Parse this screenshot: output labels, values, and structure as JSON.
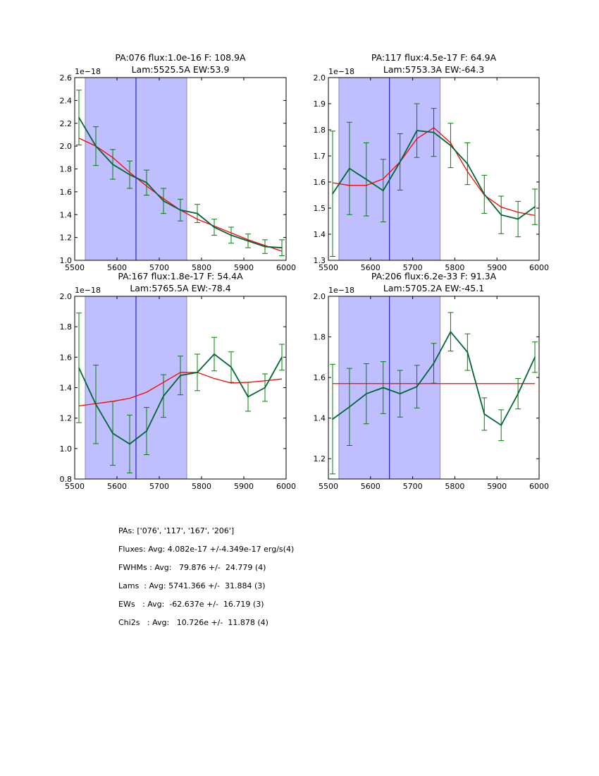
{
  "chart_data": [
    {
      "type": "line",
      "title": [
        "PA:076 flux:1.0e-16 F: 108.9A",
        "Lam:5525.5A EW:53.9"
      ],
      "exponent_label": "1e−18",
      "xlim": [
        5500,
        6000
      ],
      "ylim": [
        1.0,
        2.6
      ],
      "xticks": [
        "5500",
        "5600",
        "5700",
        "5800",
        "5900",
        "6000"
      ],
      "yticks": [
        "1.0",
        "1.2",
        "1.4",
        "1.6",
        "1.8",
        "2.0",
        "2.2",
        "2.4",
        "2.6"
      ],
      "shade": [
        5525,
        5765
      ],
      "vline": 5645,
      "x": [
        5510,
        5550,
        5590,
        5630,
        5670,
        5710,
        5750,
        5790,
        5830,
        5870,
        5910,
        5950,
        5990
      ],
      "series": [
        {
          "name": "data",
          "color": "#006633",
          "values": [
            2.25,
            2.0,
            1.84,
            1.75,
            1.68,
            1.52,
            1.44,
            1.41,
            1.29,
            1.22,
            1.17,
            1.12,
            1.11
          ],
          "err": [
            0.24,
            0.17,
            0.13,
            0.12,
            0.11,
            0.11,
            0.095,
            0.08,
            0.07,
            0.07,
            0.06,
            0.06,
            0.07
          ]
        },
        {
          "name": "model",
          "color": "#ff0000",
          "values": [
            2.07,
            2.0,
            1.9,
            1.77,
            1.65,
            1.54,
            1.44,
            1.36,
            1.3,
            1.24,
            1.18,
            1.13,
            1.08
          ]
        }
      ]
    },
    {
      "type": "line",
      "title": [
        "PA:117 flux:4.5e-17 F: 64.9A",
        "Lam:5753.3A EW:-64.3"
      ],
      "exponent_label": "1e−18",
      "xlim": [
        5500,
        6000
      ],
      "ylim": [
        1.3,
        2.0
      ],
      "xticks": [
        "5500",
        "5600",
        "5700",
        "5800",
        "5900",
        "6000"
      ],
      "yticks": [
        "1.3",
        "1.4",
        "1.5",
        "1.6",
        "1.7",
        "1.8",
        "1.9",
        "2.0"
      ],
      "shade": [
        5525,
        5765
      ],
      "vline": 5645,
      "x": [
        5510,
        5550,
        5590,
        5630,
        5670,
        5710,
        5750,
        5790,
        5830,
        5870,
        5910,
        5950,
        5990
      ],
      "series": [
        {
          "name": "data",
          "color": "#006633",
          "values": [
            1.555,
            1.652,
            1.61,
            1.567,
            1.677,
            1.797,
            1.79,
            1.74,
            1.67,
            1.553,
            1.474,
            1.458,
            1.505
          ],
          "err": [
            0.24,
            0.177,
            0.14,
            0.12,
            0.108,
            0.103,
            0.092,
            0.085,
            0.08,
            0.073,
            0.072,
            0.068,
            0.068
          ]
        },
        {
          "name": "model",
          "color": "#ff0000",
          "values": [
            1.597,
            1.587,
            1.587,
            1.612,
            1.677,
            1.766,
            1.808,
            1.75,
            1.64,
            1.55,
            1.504,
            1.484,
            1.472
          ]
        }
      ]
    },
    {
      "type": "line",
      "title": [
        "PA:167 flux:1.8e-17 F: 54.4A",
        "Lam:5765.5A EW:-78.4"
      ],
      "exponent_label": "1e−18",
      "xlim": [
        5500,
        6000
      ],
      "ylim": [
        0.8,
        2.0
      ],
      "xticks": [
        "5500",
        "5600",
        "5700",
        "5800",
        "5900",
        "6000"
      ],
      "yticks": [
        "0.8",
        "1.0",
        "1.2",
        "1.4",
        "1.6",
        "1.8",
        "2.0"
      ],
      "shade": [
        5525,
        5765
      ],
      "vline": 5645,
      "x": [
        5510,
        5550,
        5590,
        5630,
        5670,
        5710,
        5750,
        5790,
        5830,
        5870,
        5910,
        5950,
        5990
      ],
      "series": [
        {
          "name": "data",
          "color": "#006633",
          "values": [
            1.53,
            1.29,
            1.1,
            1.03,
            1.115,
            1.345,
            1.48,
            1.5,
            1.62,
            1.535,
            1.34,
            1.4,
            1.6
          ],
          "err": [
            0.36,
            0.258,
            0.21,
            0.19,
            0.155,
            0.14,
            0.127,
            0.12,
            0.11,
            0.1,
            0.095,
            0.09,
            0.085
          ]
        },
        {
          "name": "model",
          "color": "#ff0000",
          "values": [
            1.28,
            1.295,
            1.31,
            1.33,
            1.37,
            1.435,
            1.5,
            1.5,
            1.46,
            1.43,
            1.435,
            1.445,
            1.457
          ]
        }
      ]
    },
    {
      "type": "line",
      "title": [
        "PA:206 flux:6.2e-33 F: 91.3A",
        "Lam:5705.2A EW:-45.1"
      ],
      "exponent_label": "1e−18",
      "xlim": [
        5500,
        6000
      ],
      "ylim": [
        1.1,
        2.0
      ],
      "xticks": [
        "5500",
        "5600",
        "5700",
        "5800",
        "5900",
        "6000"
      ],
      "yticks": [
        "1.2",
        "1.4",
        "1.6",
        "1.8",
        "2.0"
      ],
      "shade": [
        5525,
        5765
      ],
      "vline": 5645,
      "x": [
        5510,
        5550,
        5590,
        5630,
        5670,
        5710,
        5750,
        5790,
        5830,
        5870,
        5910,
        5950,
        5990
      ],
      "series": [
        {
          "name": "data",
          "color": "#006633",
          "values": [
            1.395,
            1.455,
            1.52,
            1.55,
            1.52,
            1.555,
            1.67,
            1.825,
            1.725,
            1.42,
            1.365,
            1.52,
            1.7
          ],
          "err": [
            0.27,
            0.19,
            0.148,
            0.128,
            0.115,
            0.105,
            0.098,
            0.095,
            0.09,
            0.08,
            0.076,
            0.075,
            0.075
          ]
        },
        {
          "name": "model",
          "color": "#ff0000",
          "values": [
            1.57,
            1.57,
            1.57,
            1.57,
            1.57,
            1.57,
            1.57,
            1.57,
            1.57,
            1.57,
            1.57,
            1.57,
            1.57
          ]
        }
      ]
    }
  ],
  "stats": [
    "PAs: ['076', '117', '167', '206']",
    "Fluxes: Avg: 4.082e-17 +/-4.349e-17 erg/s(4)",
    "FWHMs : Avg:   79.876 +/-  24.779 (4)",
    "Lams  : Avg: 5741.366 +/-  31.884 (3)",
    "EWs   : Avg:  -62.637e +/-  16.719 (3)",
    "Chi2s   : Avg:   10.726e +/-  11.878 (4)"
  ],
  "colors": {
    "shade": "#bfbfff",
    "shade_edge": "#8888bb",
    "vline": "#0000cc",
    "errorbar": "#008000"
  }
}
